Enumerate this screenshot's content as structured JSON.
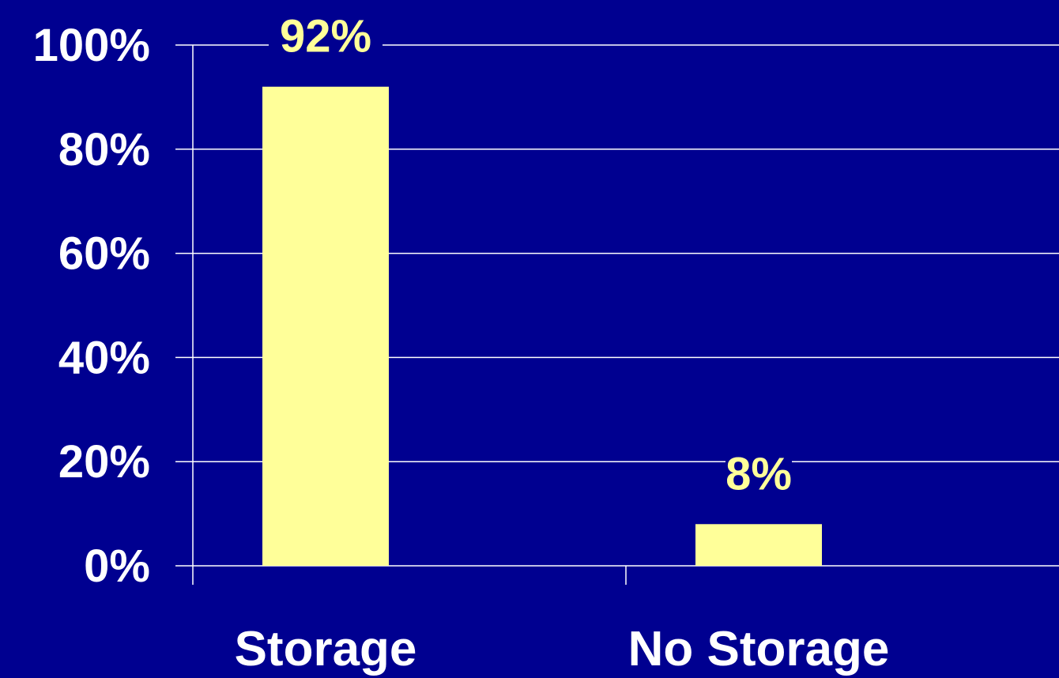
{
  "chart_data": {
    "type": "bar",
    "categories": [
      "Storage",
      "No Storage"
    ],
    "values": [
      92,
      8
    ],
    "data_labels": [
      "92%",
      "8%"
    ],
    "y_tick_labels": [
      "0%",
      "20%",
      "40%",
      "60%",
      "80%",
      "100%"
    ],
    "y_ticks": [
      0,
      20,
      40,
      60,
      80,
      100
    ],
    "ylim": [
      0,
      100
    ],
    "grid": true,
    "legend": "none",
    "colors": {
      "background": "#000090",
      "bar": "#FFFF99",
      "grid": "#FFFFFF",
      "axis_text": "#FFFFFF",
      "data_label": "#FFFF99"
    }
  }
}
